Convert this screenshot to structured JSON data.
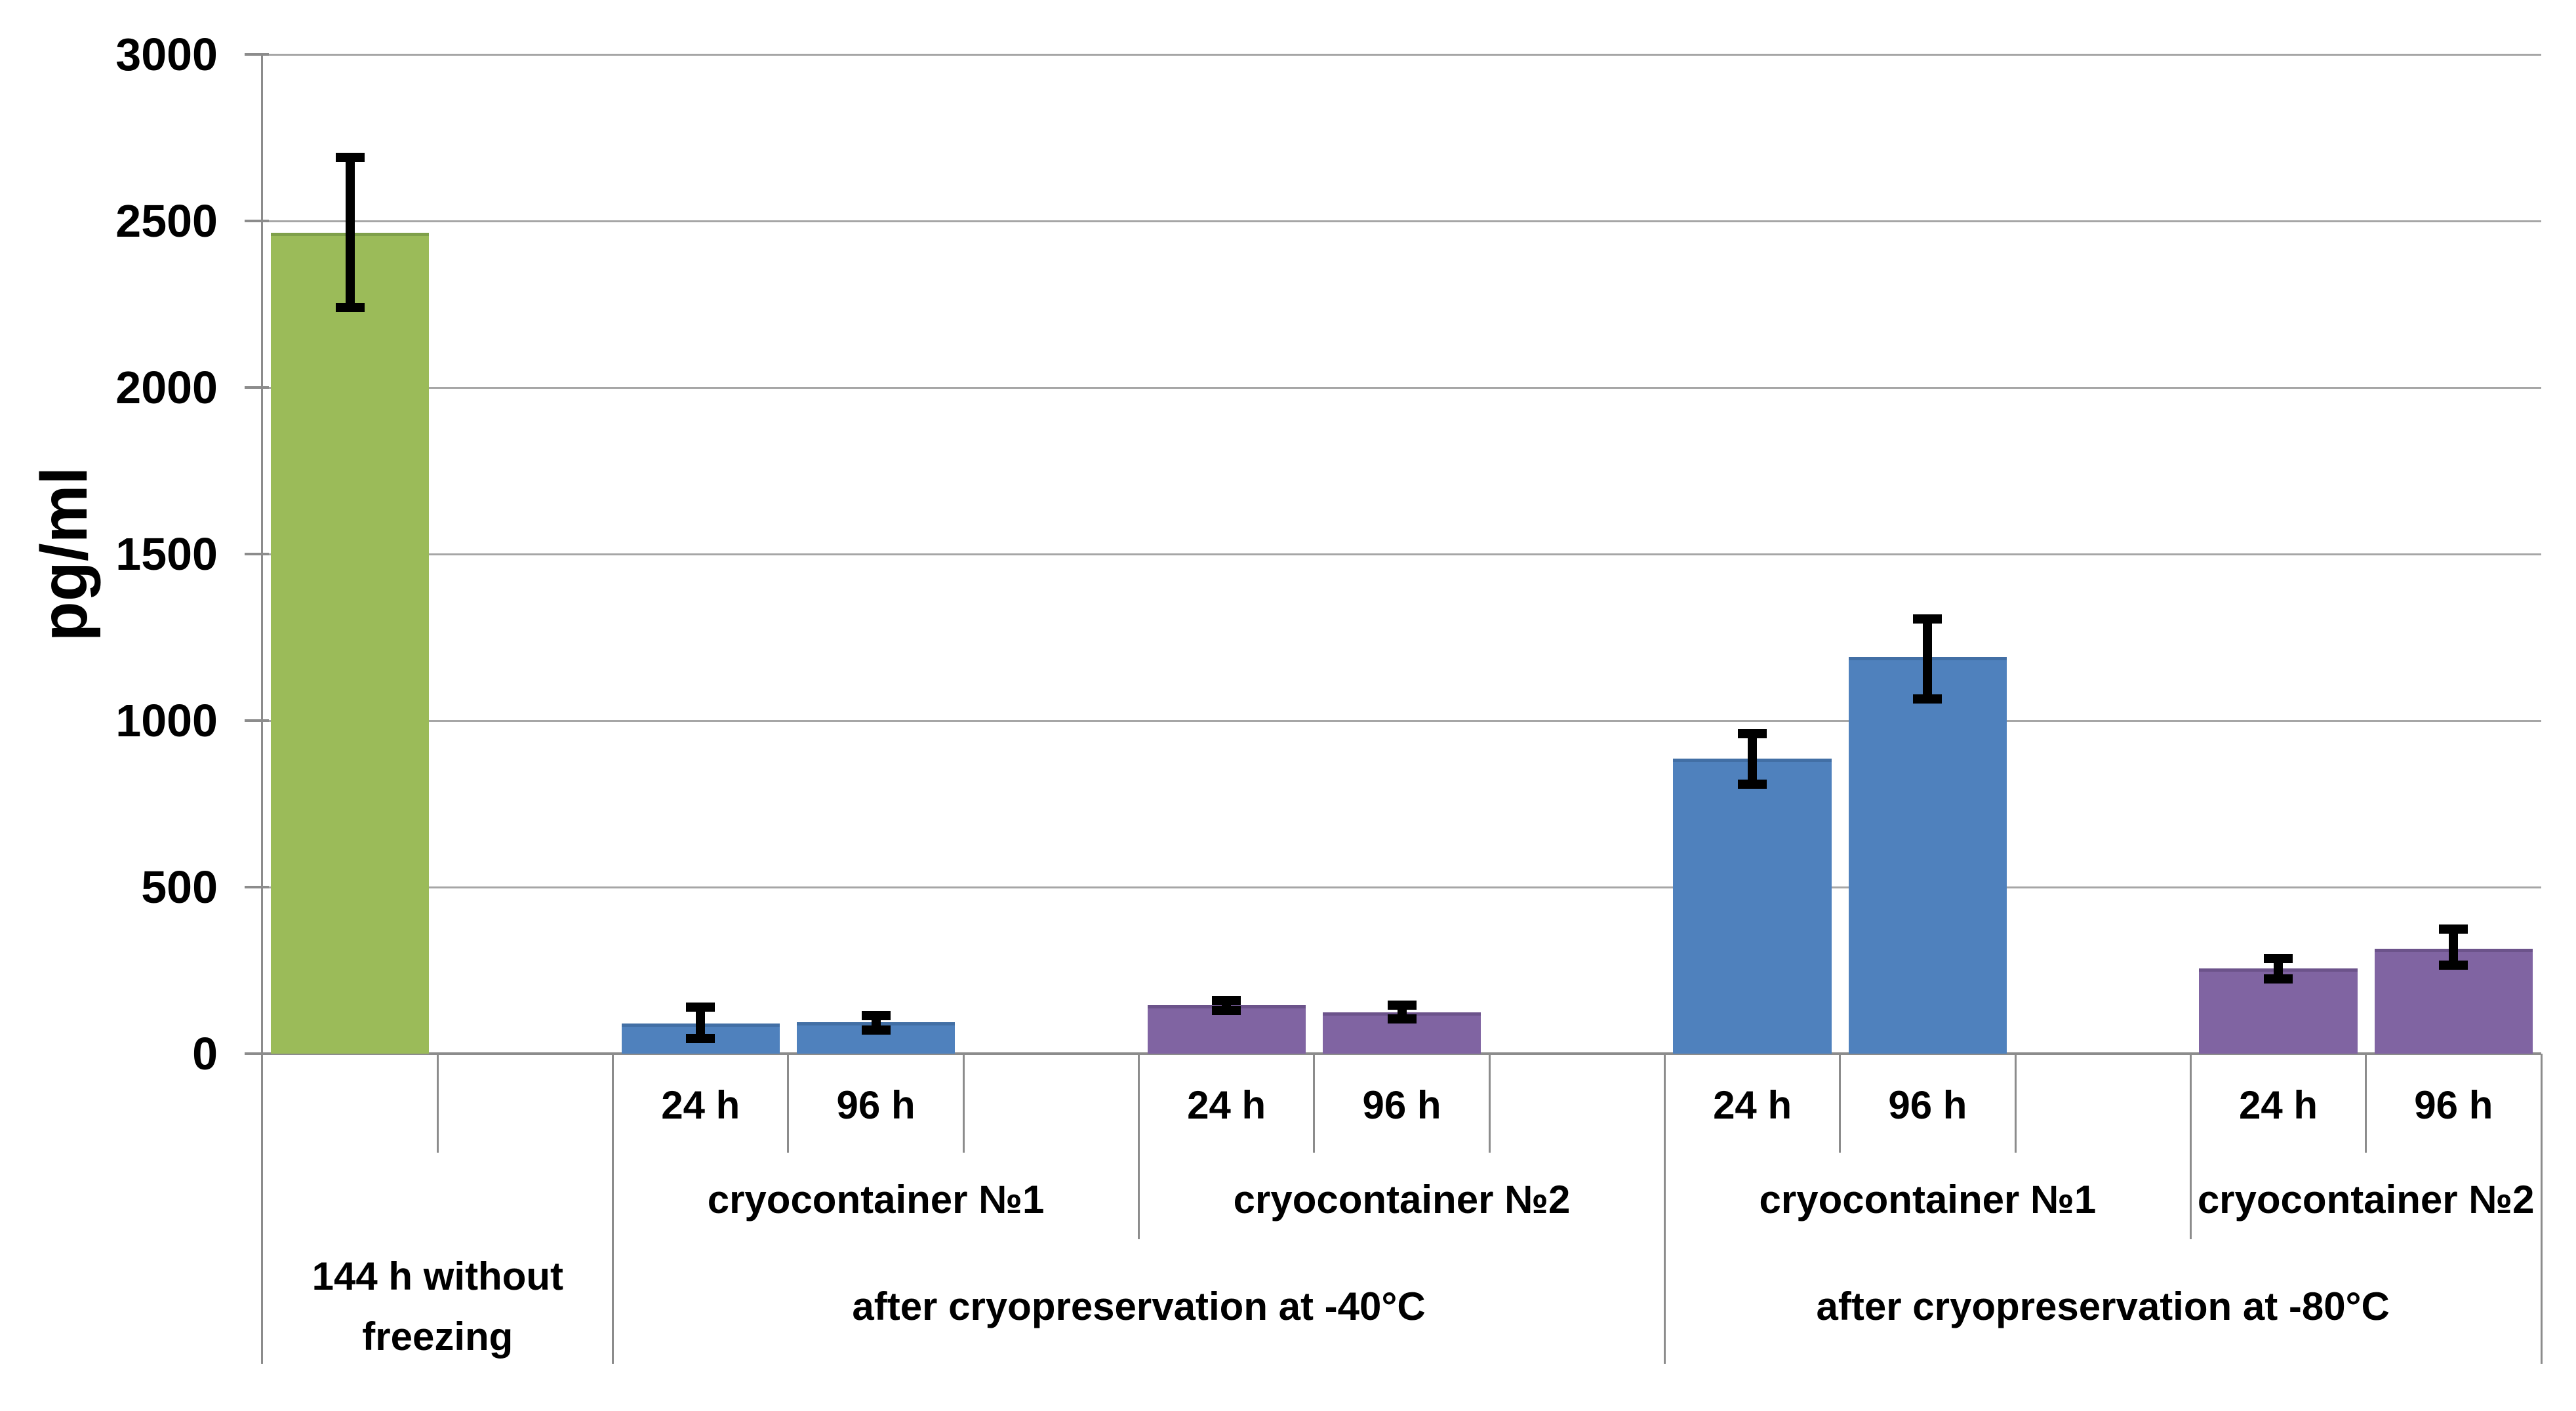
{
  "chart_data": {
    "type": "bar",
    "title": "",
    "ylabel": "pg/ml",
    "xlabel": "",
    "ylim": [
      0,
      3000
    ],
    "ytick_interval": 500,
    "yticks": [
      0,
      500,
      1000,
      1500,
      2000,
      2500,
      3000
    ],
    "grid": true,
    "legend": false,
    "error_bar_color": "#000000",
    "colors": {
      "green": {
        "fill": "#9BBB59",
        "edge": "#7FA04A"
      },
      "blue": {
        "fill": "#4F81BD",
        "edge": "#426FA5"
      },
      "purple": {
        "fill": "#8064A2",
        "edge": "#6C538B"
      }
    },
    "groups": [
      {
        "label_lines": [
          "144 h without",
          "freezing"
        ],
        "subgroups": [
          {
            "label": "",
            "spacer_after": true,
            "bars": [
              {
                "label": "",
                "value": 2465,
                "err_low": 2240,
                "err_high": 2690,
                "series": "green"
              }
            ]
          }
        ]
      },
      {
        "label_lines": [
          "after cryopreservation at -40°C"
        ],
        "subgroups": [
          {
            "label": "cryocontainer №1",
            "spacer_after": true,
            "bars": [
              {
                "label": "24 h",
                "value": 90,
                "err_low": 45,
                "err_high": 140,
                "series": "blue"
              },
              {
                "label": "96 h",
                "value": 95,
                "err_low": 70,
                "err_high": 115,
                "series": "blue"
              }
            ]
          },
          {
            "label": "cryocontainer №2",
            "spacer_after": true,
            "bars": [
              {
                "label": "24 h",
                "value": 145,
                "err_low": 130,
                "err_high": 160,
                "series": "purple"
              },
              {
                "label": "96 h",
                "value": 125,
                "err_low": 105,
                "err_high": 145,
                "series": "purple"
              }
            ]
          }
        ]
      },
      {
        "label_lines": [
          "after cryopreservation at -80°C"
        ],
        "subgroups": [
          {
            "label": "cryocontainer №1",
            "spacer_after": true,
            "bars": [
              {
                "label": "24 h",
                "value": 885,
                "err_low": 810,
                "err_high": 960,
                "series": "blue"
              },
              {
                "label": "96 h",
                "value": 1190,
                "err_low": 1065,
                "err_high": 1305,
                "series": "blue"
              }
            ]
          },
          {
            "label": "cryocontainer №2",
            "spacer_after": false,
            "bars": [
              {
                "label": "24 h",
                "value": 255,
                "err_low": 225,
                "err_high": 285,
                "series": "purple"
              },
              {
                "label": "96 h",
                "value": 315,
                "err_low": 265,
                "err_high": 375,
                "series": "purple"
              }
            ]
          }
        ]
      }
    ]
  }
}
